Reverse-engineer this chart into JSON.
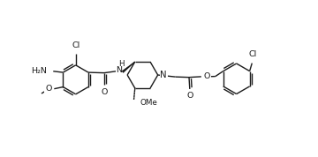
{
  "bg": "#ffffff",
  "lc": "#1a1a1a",
  "lw": 1.0,
  "fs": 6.8,
  "figsize": [
    3.6,
    1.78
  ],
  "dpi": 100,
  "xlim": [
    -0.05,
    1.05
  ],
  "ylim": [
    0.18,
    0.85
  ]
}
